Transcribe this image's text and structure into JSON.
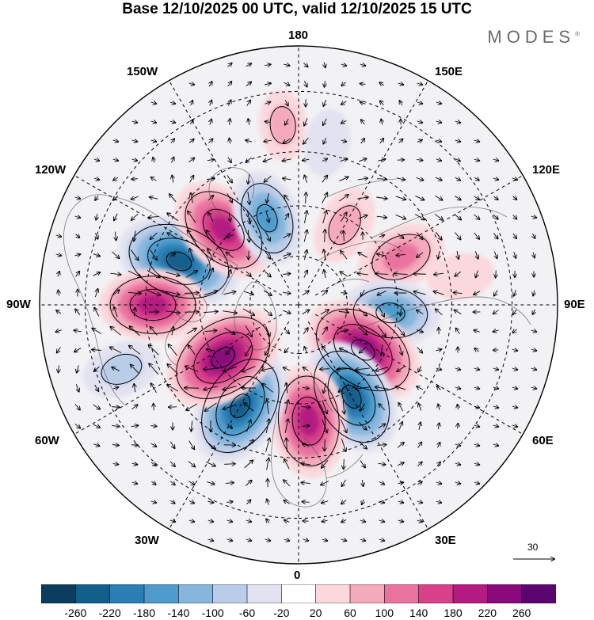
{
  "title": "Base 12/10/2025 00 UTC, valid 12/10/2025 15 UTC",
  "brand": "MODES",
  "brand_mark": "®",
  "longitude_labels": {
    "top": "180",
    "bottom": "0",
    "left": "90W",
    "right": "90E",
    "upper_left_1": "150W",
    "upper_left_2": "120W",
    "upper_right_1": "150E",
    "upper_right_2": "120E",
    "lower_left_1": "60W",
    "lower_left_2": "30W",
    "lower_right_1": "60E",
    "lower_right_2": "30E"
  },
  "reference_vector": {
    "label": "30"
  },
  "colorbar": {
    "ticks": [
      "-260",
      "-220",
      "-180",
      "-140",
      "-100",
      "-60",
      "-20",
      "20",
      "60",
      "100",
      "140",
      "180",
      "220",
      "260"
    ],
    "colors": [
      "#0b3d5e",
      "#135f8c",
      "#2a7fb4",
      "#4f9bcc",
      "#87b6dc",
      "#b9cce8",
      "#e2e2f1",
      "#ffffff",
      "#fbd8dd",
      "#f4a9bc",
      "#e9739e",
      "#d9418a",
      "#b31b81",
      "#8a0a7e",
      "#5c0570"
    ]
  },
  "anomaly_centers": [
    {
      "lon": -110,
      "lat": 52,
      "value": -240
    },
    {
      "lon": -135,
      "lat": 58,
      "value": 200
    },
    {
      "lon": -160,
      "lat": 62,
      "value": -140
    },
    {
      "lon": 150,
      "lat": 62,
      "value": 80
    },
    {
      "lon": 115,
      "lat": 56,
      "value": 120
    },
    {
      "lon": 85,
      "lat": 62,
      "value": -150
    },
    {
      "lon": 55,
      "lat": 66,
      "value": 240
    },
    {
      "lon": 30,
      "lat": 58,
      "value": -220
    },
    {
      "lon": 5,
      "lat": 55,
      "value": 200
    },
    {
      "lon": -30,
      "lat": 55,
      "value": -230
    },
    {
      "lon": -55,
      "lat": 62,
      "value": 240
    },
    {
      "lon": -90,
      "lat": 47,
      "value": 180
    },
    {
      "lon": -70,
      "lat": 36,
      "value": -80
    },
    {
      "lon": -175,
      "lat": 38,
      "value": 50
    },
    {
      "lon": 170,
      "lat": 42,
      "value": -40
    },
    {
      "lon": 100,
      "lat": 42,
      "value": 40
    }
  ]
}
